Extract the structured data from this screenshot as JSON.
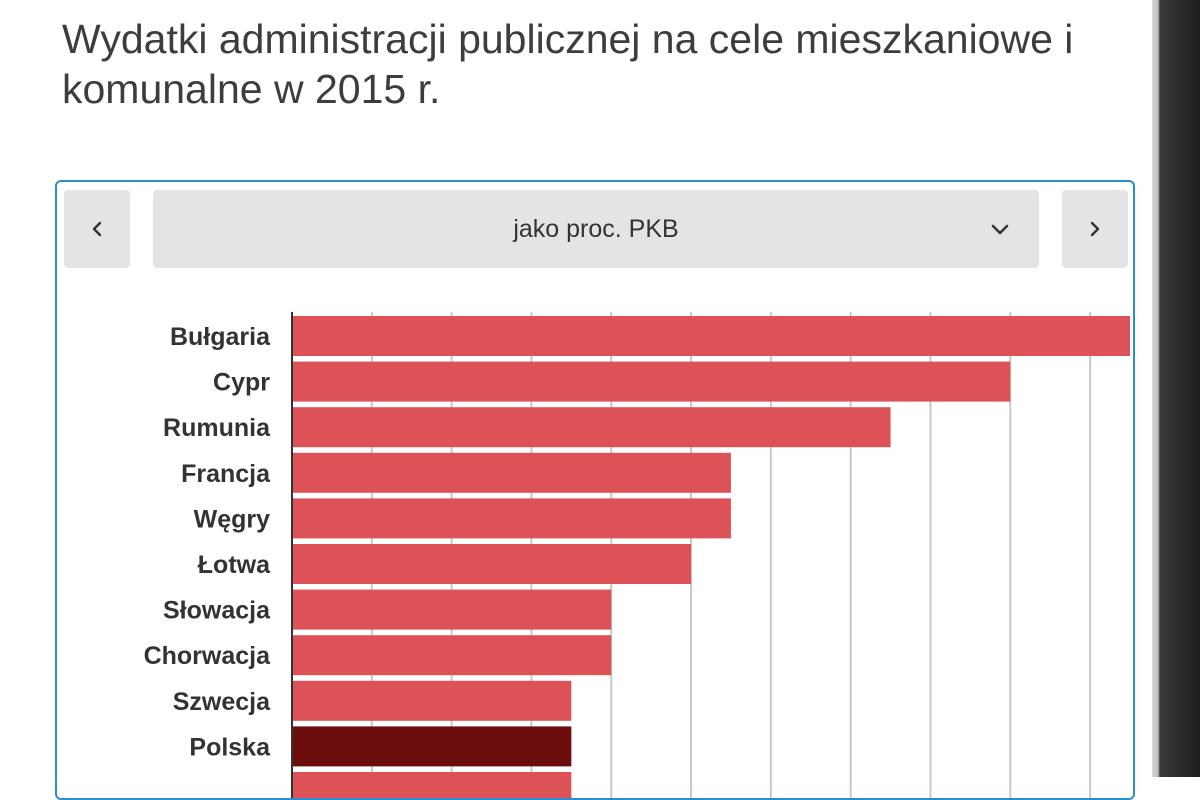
{
  "title": "Wydatki administracji publicznej na cele mieszkaniowe i komunalne w 2015 r.",
  "selector": {
    "label": "jako proc. PKB"
  },
  "icons": {
    "prev": "chevron-left-icon",
    "next": "chevron-right-icon",
    "dropdown": "chevron-down-icon"
  },
  "colors": {
    "bar": "#dc5257",
    "highlight": "#6b0d0d",
    "frame": "#2a8fd0",
    "grid": "#c8c8c8"
  },
  "chart_data": {
    "type": "bar",
    "orientation": "horizontal",
    "categories": [
      "Bułgaria",
      "Cypr",
      "Rumunia",
      "Francja",
      "Węgry",
      "Łotwa",
      "Słowacja",
      "Chorwacja",
      "Szwecja",
      "Polska"
    ],
    "values": [
      2.1,
      1.8,
      1.5,
      1.1,
      1.1,
      1.0,
      0.8,
      0.8,
      0.7,
      0.7
    ],
    "highlight": "Polska",
    "xlim": [
      0,
      2.1
    ],
    "grid": true
  }
}
